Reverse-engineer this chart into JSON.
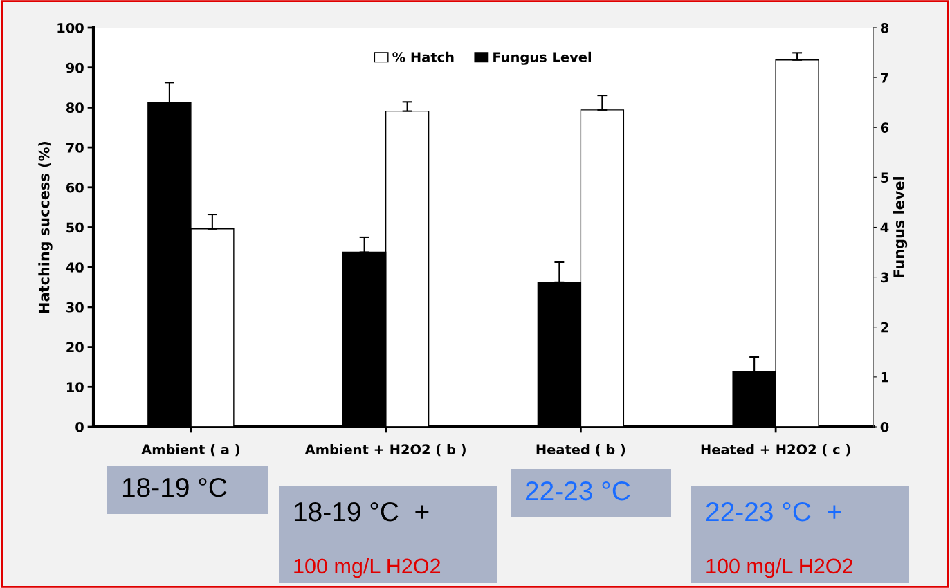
{
  "chart_data": {
    "type": "bar",
    "categories": [
      "Ambient ( a )",
      "Ambient + H2O2 ( b )",
      "Heated ( b )",
      "Heated + H2O2 ( c )"
    ],
    "series": [
      {
        "name": "Fungus Level",
        "color": "#000000",
        "axis": "y2",
        "values": [
          6.5,
          3.5,
          2.9,
          1.1
        ],
        "errors": [
          0.4,
          0.3,
          0.4,
          0.3
        ]
      },
      {
        "name": "% Hatch",
        "color": "#ffffff",
        "values": [
          49.6,
          79.1,
          79.4,
          91.9
        ],
        "errors": [
          3.6,
          2.3,
          3.6,
          1.8
        ]
      }
    ],
    "ylabel": "Hatching success (%)",
    "y2label": "Fungus level",
    "ylim": [
      0,
      100
    ],
    "yticks": [
      0,
      10,
      20,
      30,
      40,
      50,
      60,
      70,
      80,
      90,
      100
    ],
    "y2lim": [
      0,
      8
    ],
    "y2ticks": [
      0,
      1,
      2,
      3,
      4,
      5,
      6,
      7,
      8
    ],
    "legend": "top",
    "grid": false,
    "annotations": [
      "18-19 °C",
      "18-19 °C  +",
      "100 mg/L H2O2",
      "22-23 °C",
      "22-23 °C  +",
      "100 mg/L H2O2"
    ]
  }
}
